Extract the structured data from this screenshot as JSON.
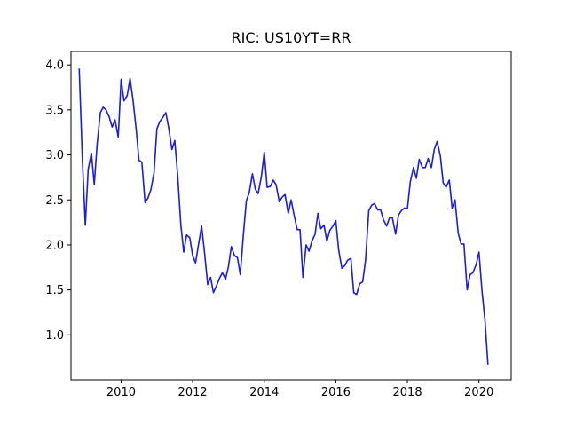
{
  "chart_data": {
    "type": "line",
    "title": "RIC: US10YT=RR",
    "xlabel": "",
    "ylabel": "",
    "xlim": [
      2008.6,
      2020.9
    ],
    "ylim": [
      0.5,
      4.15
    ],
    "xticks": [
      2010,
      2012,
      2014,
      2016,
      2018,
      2020
    ],
    "xtick_labels": [
      "2010",
      "2012",
      "2014",
      "2016",
      "2018",
      "2020"
    ],
    "yticks": [
      1.0,
      1.5,
      2.0,
      2.5,
      3.0,
      3.5,
      4.0
    ],
    "ytick_labels": [
      "1.0",
      "1.5",
      "2.0",
      "2.5",
      "3.0",
      "3.5",
      "4.0"
    ],
    "grid": false,
    "legend": "none",
    "line_color": "#1c1ce0",
    "series": [
      {
        "x": [
          2008.83,
          2008.92,
          2009.0,
          2009.08,
          2009.17,
          2009.25,
          2009.33,
          2009.42,
          2009.5,
          2009.58,
          2009.67,
          2009.75,
          2009.83,
          2009.92,
          2010.0,
          2010.08,
          2010.17,
          2010.25,
          2010.33,
          2010.42,
          2010.5,
          2010.58,
          2010.67,
          2010.75,
          2010.83,
          2010.92,
          2011.0,
          2011.08,
          2011.17,
          2011.25,
          2011.33,
          2011.42,
          2011.5,
          2011.58,
          2011.67,
          2011.75,
          2011.83,
          2011.92,
          2012.0,
          2012.08,
          2012.17,
          2012.25,
          2012.33,
          2012.42,
          2012.5,
          2012.58,
          2012.67,
          2012.75,
          2012.83,
          2012.92,
          2013.0,
          2013.08,
          2013.17,
          2013.25,
          2013.33,
          2013.42,
          2013.5,
          2013.58,
          2013.67,
          2013.75,
          2013.83,
          2013.92,
          2014.0,
          2014.08,
          2014.17,
          2014.25,
          2014.33,
          2014.42,
          2014.5,
          2014.58,
          2014.67,
          2014.75,
          2014.83,
          2014.92,
          2015.0,
          2015.08,
          2015.17,
          2015.25,
          2015.33,
          2015.42,
          2015.5,
          2015.58,
          2015.67,
          2015.75,
          2015.83,
          2015.92,
          2016.0,
          2016.08,
          2016.17,
          2016.25,
          2016.33,
          2016.42,
          2016.5,
          2016.58,
          2016.67,
          2016.75,
          2016.83,
          2016.92,
          2017.0,
          2017.08,
          2017.17,
          2017.25,
          2017.33,
          2017.42,
          2017.5,
          2017.58,
          2017.67,
          2017.75,
          2017.83,
          2017.92,
          2018.0,
          2018.08,
          2018.17,
          2018.25,
          2018.33,
          2018.42,
          2018.5,
          2018.58,
          2018.67,
          2018.75,
          2018.83,
          2018.92,
          2019.0,
          2019.08,
          2019.17,
          2019.25,
          2019.33,
          2019.42,
          2019.5,
          2019.58,
          2019.67,
          2019.75,
          2019.83,
          2019.92,
          2020.0,
          2020.08,
          2020.17,
          2020.25
        ],
        "y": [
          3.96,
          2.93,
          2.22,
          2.84,
          3.02,
          2.67,
          3.12,
          3.47,
          3.53,
          3.5,
          3.42,
          3.31,
          3.39,
          3.2,
          3.84,
          3.6,
          3.66,
          3.85,
          3.62,
          3.29,
          2.94,
          2.92,
          2.47,
          2.52,
          2.61,
          2.8,
          3.29,
          3.37,
          3.42,
          3.47,
          3.3,
          3.06,
          3.16,
          2.78,
          2.22,
          1.92,
          2.11,
          2.08,
          1.88,
          1.8,
          2.02,
          2.21,
          1.92,
          1.56,
          1.64,
          1.47,
          1.55,
          1.63,
          1.69,
          1.62,
          1.76,
          1.98,
          1.88,
          1.86,
          1.67,
          2.13,
          2.49,
          2.58,
          2.79,
          2.62,
          2.57,
          2.76,
          3.03,
          2.64,
          2.65,
          2.72,
          2.67,
          2.48,
          2.53,
          2.56,
          2.35,
          2.5,
          2.34,
          2.17,
          2.17,
          1.64,
          2.0,
          1.93,
          2.04,
          2.12,
          2.35,
          2.18,
          2.22,
          2.04,
          2.16,
          2.21,
          2.27,
          1.94,
          1.74,
          1.77,
          1.83,
          1.85,
          1.47,
          1.45,
          1.57,
          1.59,
          1.83,
          2.38,
          2.44,
          2.46,
          2.39,
          2.39,
          2.28,
          2.21,
          2.3,
          2.3,
          2.12,
          2.33,
          2.38,
          2.41,
          2.4,
          2.7,
          2.86,
          2.74,
          2.95,
          2.86,
          2.86,
          2.96,
          2.86,
          3.06,
          3.15,
          2.99,
          2.69,
          2.64,
          2.72,
          2.41,
          2.5,
          2.13,
          2.01,
          2.01,
          1.5,
          1.67,
          1.69,
          1.78,
          1.92,
          1.51,
          1.15,
          0.67
        ]
      }
    ]
  }
}
